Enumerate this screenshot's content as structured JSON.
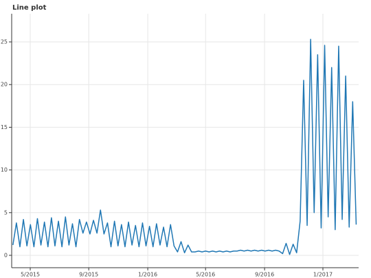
{
  "chart_data": {
    "type": "line",
    "title": "Line plot",
    "x": [
      2015.23,
      2015.25,
      2015.27,
      2015.29,
      2015.31,
      2015.33,
      2015.35,
      2015.37,
      2015.39,
      2015.41,
      2015.43,
      2015.45,
      2015.47,
      2015.49,
      2015.51,
      2015.53,
      2015.55,
      2015.57,
      2015.59,
      2015.61,
      2015.63,
      2015.65,
      2015.67,
      2015.69,
      2015.71,
      2015.73,
      2015.75,
      2015.77,
      2015.79,
      2015.81,
      2015.83,
      2015.85,
      2015.87,
      2015.89,
      2015.91,
      2015.93,
      2015.95,
      2015.97,
      2015.99,
      2016.01,
      2016.03,
      2016.05,
      2016.07,
      2016.09,
      2016.11,
      2016.13,
      2016.15,
      2016.17,
      2016.19,
      2016.21,
      2016.23,
      2016.25,
      2016.27,
      2016.29,
      2016.31,
      2016.33,
      2016.35,
      2016.37,
      2016.39,
      2016.41,
      2016.43,
      2016.45,
      2016.47,
      2016.49,
      2016.51,
      2016.53,
      2016.55,
      2016.57,
      2016.59,
      2016.61,
      2016.63,
      2016.65,
      2016.67,
      2016.69,
      2016.71,
      2016.73,
      2016.75,
      2016.77,
      2016.79,
      2016.81,
      2016.83,
      2016.85,
      2016.87,
      2016.89,
      2016.91,
      2016.93,
      2016.95,
      2016.97,
      2016.99,
      2017.01,
      2017.03,
      2017.05,
      2017.07,
      2017.09,
      2017.11,
      2017.13,
      2017.15,
      2017.17,
      2017.19
    ],
    "series": [
      {
        "color": "#1f77b4",
        "values": [
          1.2,
          3.8,
          1.0,
          4.2,
          1.1,
          3.6,
          1.0,
          4.3,
          1.2,
          3.9,
          1.0,
          4.4,
          1.1,
          4.0,
          1.0,
          4.5,
          1.2,
          3.7,
          1.0,
          4.2,
          2.6,
          3.9,
          2.5,
          4.1,
          2.6,
          5.3,
          2.5,
          3.8,
          1.0,
          4.0,
          1.1,
          3.6,
          1.0,
          3.9,
          1.2,
          3.5,
          1.0,
          3.8,
          1.1,
          3.4,
          1.0,
          3.7,
          1.2,
          3.3,
          1.0,
          3.6,
          1.1,
          0.4,
          1.6,
          0.3,
          1.2,
          0.4,
          0.4,
          0.5,
          0.4,
          0.5,
          0.4,
          0.5,
          0.4,
          0.5,
          0.4,
          0.5,
          0.4,
          0.5,
          0.5,
          0.6,
          0.5,
          0.6,
          0.5,
          0.6,
          0.5,
          0.6,
          0.5,
          0.6,
          0.5,
          0.6,
          0.5,
          0.2,
          1.4,
          0.1,
          1.3,
          0.3,
          4.0,
          20.5,
          3.5,
          25.3,
          5.0,
          23.5,
          3.2,
          24.6,
          4.5,
          22.0,
          3.0,
          24.5,
          4.2,
          21.0,
          3.3,
          18.0,
          3.6
        ]
      }
    ],
    "xlim": [
      2015.223,
      2017.204
    ],
    "xticks": [
      {
        "value": 2015.329,
        "label": "5/2015"
      },
      {
        "value": 2015.663,
        "label": "9/2015"
      },
      {
        "value": 2016.0,
        "label": "1/2016"
      },
      {
        "value": 2016.33,
        "label": "5/2016"
      },
      {
        "value": 2016.667,
        "label": "9/2016"
      },
      {
        "value": 2017.0,
        "label": "1/2017"
      }
    ],
    "ylim": [
      -1.45,
      28.3
    ],
    "yticks": [
      0,
      5,
      10,
      15,
      20,
      25
    ],
    "grid": true
  }
}
